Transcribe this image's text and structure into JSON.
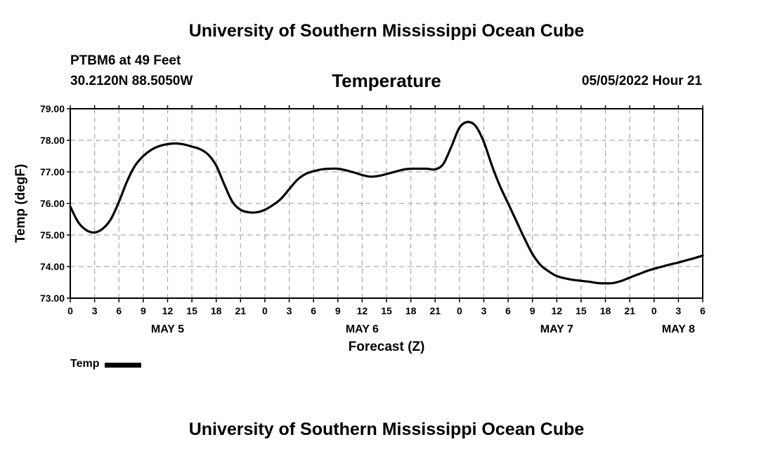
{
  "header": {
    "title": "University of Southern Mississippi Ocean Cube",
    "station": "PTBM6 at 49 Feet",
    "coords": "30.2120N  88.5050W",
    "chart_title": "Temperature",
    "date": "05/05/2022 Hour 21"
  },
  "footer": {
    "title": "University of Southern Mississippi Ocean Cube"
  },
  "legend": {
    "label": "Temp"
  },
  "colors": {
    "line": "#000000",
    "grid": "#aaaaaa"
  },
  "chart_data": {
    "type": "line",
    "title": "Temperature",
    "xlabel": "Forecast (Z)",
    "ylabel": "Temp (degF)",
    "ylim": [
      73.0,
      79.0
    ],
    "yticks": [
      "73.00",
      "74.00",
      "75.00",
      "76.00",
      "77.00",
      "78.00",
      "79.00"
    ],
    "xlim_hours": [
      0,
      78
    ],
    "xtick_labels": [
      "0",
      "3",
      "6",
      "9",
      "12",
      "15",
      "18",
      "21",
      "0",
      "3",
      "6",
      "9",
      "12",
      "15",
      "18",
      "21",
      "0",
      "3",
      "6",
      "9",
      "12",
      "15",
      "18",
      "21",
      "0",
      "3",
      "6"
    ],
    "day_labels": [
      {
        "label": "MAY 5",
        "hour": 12
      },
      {
        "label": "MAY 6",
        "hour": 36
      },
      {
        "label": "MAY 7",
        "hour": 60
      },
      {
        "label": "MAY 8",
        "hour": 75
      }
    ],
    "series": [
      {
        "name": "Temp",
        "x": [
          0,
          1,
          2,
          3,
          4,
          5,
          6,
          7,
          8,
          9,
          10,
          11,
          12,
          13,
          14,
          15,
          16,
          17,
          18,
          19,
          20,
          21,
          22,
          23,
          24,
          25,
          26,
          27,
          28,
          29,
          30,
          31,
          32,
          33,
          34,
          35,
          36,
          37,
          38,
          39,
          40,
          41,
          42,
          43,
          44,
          45,
          46,
          47,
          48,
          49,
          50,
          51,
          52,
          53,
          54,
          55,
          56,
          57,
          58,
          59,
          60,
          61,
          62,
          63,
          64,
          65,
          66,
          67,
          68,
          69,
          70,
          71,
          72,
          73,
          74,
          75,
          76,
          77,
          78
        ],
        "values": [
          75.9,
          75.4,
          75.15,
          75.08,
          75.2,
          75.5,
          76.05,
          76.7,
          77.2,
          77.5,
          77.7,
          77.82,
          77.88,
          77.9,
          77.87,
          77.8,
          77.72,
          77.55,
          77.2,
          76.6,
          76.05,
          75.8,
          75.72,
          75.72,
          75.8,
          75.95,
          76.15,
          76.45,
          76.75,
          76.93,
          77.02,
          77.08,
          77.1,
          77.1,
          77.05,
          76.98,
          76.9,
          76.85,
          76.87,
          76.93,
          77.0,
          77.07,
          77.1,
          77.1,
          77.1,
          77.08,
          77.25,
          77.8,
          78.4,
          78.58,
          78.45,
          77.95,
          77.2,
          76.55,
          76.0,
          75.45,
          74.9,
          74.4,
          74.05,
          73.85,
          73.7,
          73.63,
          73.58,
          73.55,
          73.52,
          73.48,
          73.47,
          73.48,
          73.55,
          73.65,
          73.75,
          73.85,
          73.93,
          74.0,
          74.07,
          74.13,
          74.2,
          74.27,
          74.35
        ]
      }
    ]
  }
}
